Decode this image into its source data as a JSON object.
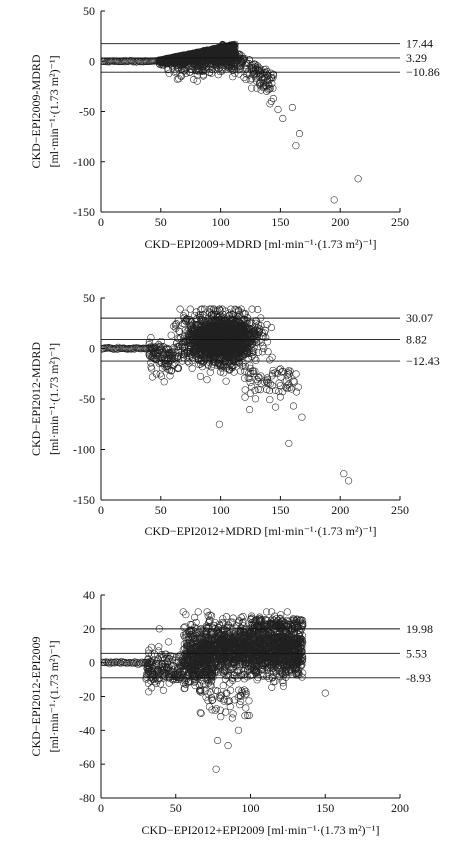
{
  "chart_data": [
    {
      "type": "scatter",
      "title": "",
      "xlabel": "CKD−EPI2009+MDRD [ml·min⁻¹·(1.73 m²)⁻¹]",
      "ylabel_line1": "CKD−EPI2009-MDRD",
      "ylabel_line2": "[ml·min⁻¹·(1.73 m²)⁻¹]",
      "xlim": [
        0,
        250
      ],
      "ylim": [
        -150,
        50
      ],
      "xticks": [
        0,
        50,
        100,
        150,
        200,
        250
      ],
      "yticks": [
        50,
        0,
        -50,
        -100,
        -150
      ],
      "reference_lines": [
        17.44,
        3.29,
        -10.86
      ],
      "reference_labels": [
        "17.44",
        "3.29",
        "−10.86"
      ],
      "outliers": [
        [
          195,
          -138
        ],
        [
          215,
          -117
        ],
        [
          163,
          -84
        ],
        [
          166,
          -72
        ],
        [
          160,
          -46
        ],
        [
          148,
          -48
        ],
        [
          152,
          -57
        ]
      ],
      "legend": "none",
      "grid": false
    },
    {
      "type": "scatter",
      "title": "",
      "xlabel": "CKD−EPI2012+MDRD [ml·min⁻¹·(1.73 m²)⁻¹]",
      "ylabel_line1": "CKD−EPI2012-MDRD",
      "ylabel_line2": "[ml·min⁻¹·(1.73 m²)⁻¹]",
      "xlim": [
        0,
        250
      ],
      "ylim": [
        -150,
        50
      ],
      "xticks": [
        0,
        50,
        100,
        150,
        200,
        250
      ],
      "yticks": [
        50,
        0,
        -50,
        -100,
        -150
      ],
      "reference_lines": [
        30.07,
        8.82,
        -12.43
      ],
      "reference_labels": [
        "30.07",
        "8.82",
        "−12.43"
      ],
      "outliers": [
        [
          203,
          -124
        ],
        [
          207,
          -131
        ],
        [
          157,
          -94
        ],
        [
          168,
          -68
        ],
        [
          99,
          -75
        ],
        [
          146,
          -58
        ],
        [
          150,
          -48
        ]
      ],
      "legend": "none",
      "grid": false
    },
    {
      "type": "scatter",
      "title": "",
      "xlabel": "CKD−EPI2012+EPI2009 [ml·min⁻¹·(1.73 m²)⁻¹]",
      "ylabel_line1": "CKD−EPI2012-EPI2009",
      "ylabel_line2": "[ml·min⁻¹·(1.73 m²)⁻¹]",
      "xlim": [
        0,
        200
      ],
      "ylim": [
        -80,
        40
      ],
      "xticks": [
        0,
        50,
        100,
        150,
        200
      ],
      "yticks": [
        40,
        20,
        0,
        -20,
        -40,
        -60,
        -80
      ],
      "reference_lines": [
        19.98,
        5.53,
        -8.93
      ],
      "reference_labels": [
        "19.98",
        "5.53",
        "-8.93"
      ],
      "outliers": [
        [
          77,
          -63
        ],
        [
          85,
          -49
        ],
        [
          78,
          -46
        ],
        [
          92,
          -40
        ],
        [
          150,
          -18
        ],
        [
          39,
          20
        ],
        [
          55,
          30
        ]
      ],
      "legend": "none",
      "grid": false
    }
  ]
}
